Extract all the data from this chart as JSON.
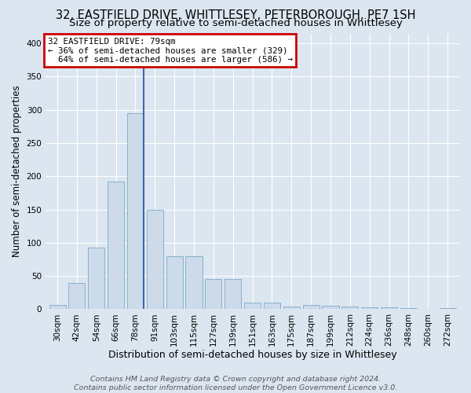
{
  "title": "32, EASTFIELD DRIVE, WHITTLESEY, PETERBOROUGH, PE7 1SH",
  "subtitle": "Size of property relative to semi-detached houses in Whittlesey",
  "xlabel": "Distribution of semi-detached houses by size in Whittlesey",
  "ylabel": "Number of semi-detached properties",
  "categories": [
    "30sqm",
    "42sqm",
    "54sqm",
    "66sqm",
    "78sqm",
    "91sqm",
    "103sqm",
    "115sqm",
    "127sqm",
    "139sqm",
    "151sqm",
    "163sqm",
    "175sqm",
    "187sqm",
    "199sqm",
    "212sqm",
    "224sqm",
    "236sqm",
    "248sqm",
    "260sqm",
    "272sqm"
  ],
  "values": [
    6,
    39,
    93,
    192,
    295,
    150,
    80,
    80,
    45,
    45,
    10,
    10,
    4,
    6,
    5,
    4,
    3,
    3,
    2,
    0,
    2
  ],
  "bar_color": "#cddaea",
  "bar_edge_color": "#7aaac8",
  "property_bar_index": 4,
  "property_label": "32 EASTFIELD DRIVE: 79sqm",
  "smaller_pct": 36,
  "smaller_n": 329,
  "larger_pct": 64,
  "larger_n": 586,
  "annotation_box_facecolor": "#ffffff",
  "annotation_box_edgecolor": "#cc0000",
  "vline_color": "#4466aa",
  "ylim": [
    0,
    415
  ],
  "yticks": [
    0,
    50,
    100,
    150,
    200,
    250,
    300,
    350,
    400
  ],
  "background_color": "#dce6f0",
  "plot_bg_color": "#dce6f0",
  "title_fontsize": 10.5,
  "subtitle_fontsize": 9.5,
  "xlabel_fontsize": 9,
  "ylabel_fontsize": 8.5,
  "tick_fontsize": 7.5,
  "footer_fontsize": 6.8,
  "footer": "Contains HM Land Registry data © Crown copyright and database right 2024.\nContains public sector information licensed under the Open Government Licence v3.0."
}
